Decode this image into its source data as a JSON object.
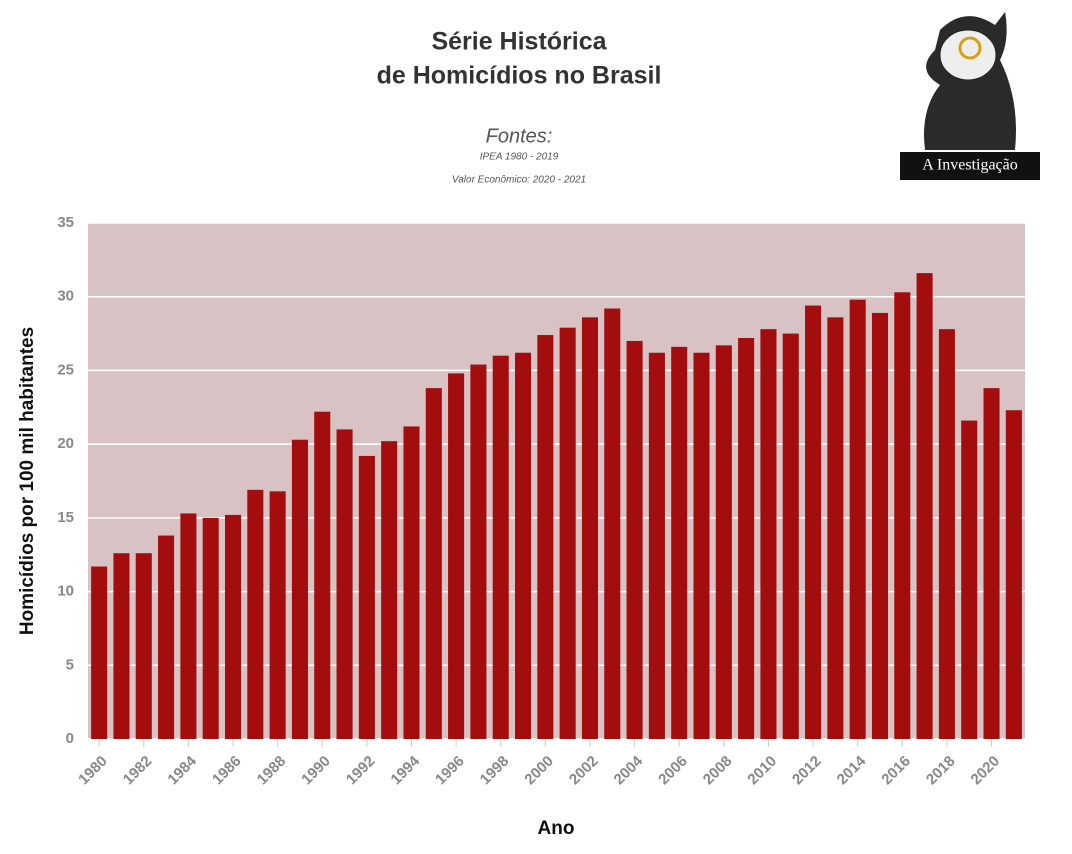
{
  "chart_data": {
    "type": "bar",
    "title": [
      "Série Histórica",
      "de Homicídios no Brasil"
    ],
    "sources_heading": "Fontes:",
    "sources": [
      "IPEA 1980 - 2019",
      "Valor Econômico: 2020 - 2021"
    ],
    "logo_text": "A Investigação",
    "x_label": "Ano",
    "y_label": "Homicídios por 100 mil habitantes",
    "x": [
      1980,
      1981,
      1982,
      1983,
      1984,
      1985,
      1986,
      1987,
      1988,
      1989,
      1990,
      1991,
      1992,
      1993,
      1994,
      1995,
      1996,
      1997,
      1998,
      1999,
      2000,
      2001,
      2002,
      2003,
      2004,
      2005,
      2006,
      2007,
      2008,
      2009,
      2010,
      2011,
      2012,
      2013,
      2014,
      2015,
      2016,
      2017,
      2018,
      2019,
      2020,
      2021
    ],
    "values": [
      11.7,
      12.6,
      12.6,
      13.8,
      15.3,
      15.0,
      15.2,
      16.9,
      16.8,
      20.3,
      22.2,
      21.0,
      19.2,
      20.2,
      21.2,
      23.8,
      24.8,
      25.4,
      26.0,
      26.2,
      27.4,
      27.9,
      28.6,
      29.2,
      27.0,
      26.2,
      26.6,
      26.2,
      26.7,
      27.2,
      27.8,
      27.5,
      29.4,
      28.6,
      29.8,
      28.9,
      30.3,
      31.6,
      27.8,
      21.6,
      23.8,
      22.3
    ],
    "color": "#a30d0d",
    "plot_background": "#d9c2c3",
    "xlim": [
      1979.5,
      2021.5
    ],
    "xticks": [
      1980,
      1982,
      1984,
      1986,
      1988,
      1990,
      1992,
      1994,
      1996,
      1998,
      2000,
      2002,
      2004,
      2006,
      2008,
      2010,
      2012,
      2014,
      2016,
      2018,
      2020
    ],
    "ylim": [
      0,
      35
    ],
    "yticks": [
      0,
      5,
      10,
      15,
      20,
      25,
      30,
      35
    ],
    "grid": true
  }
}
